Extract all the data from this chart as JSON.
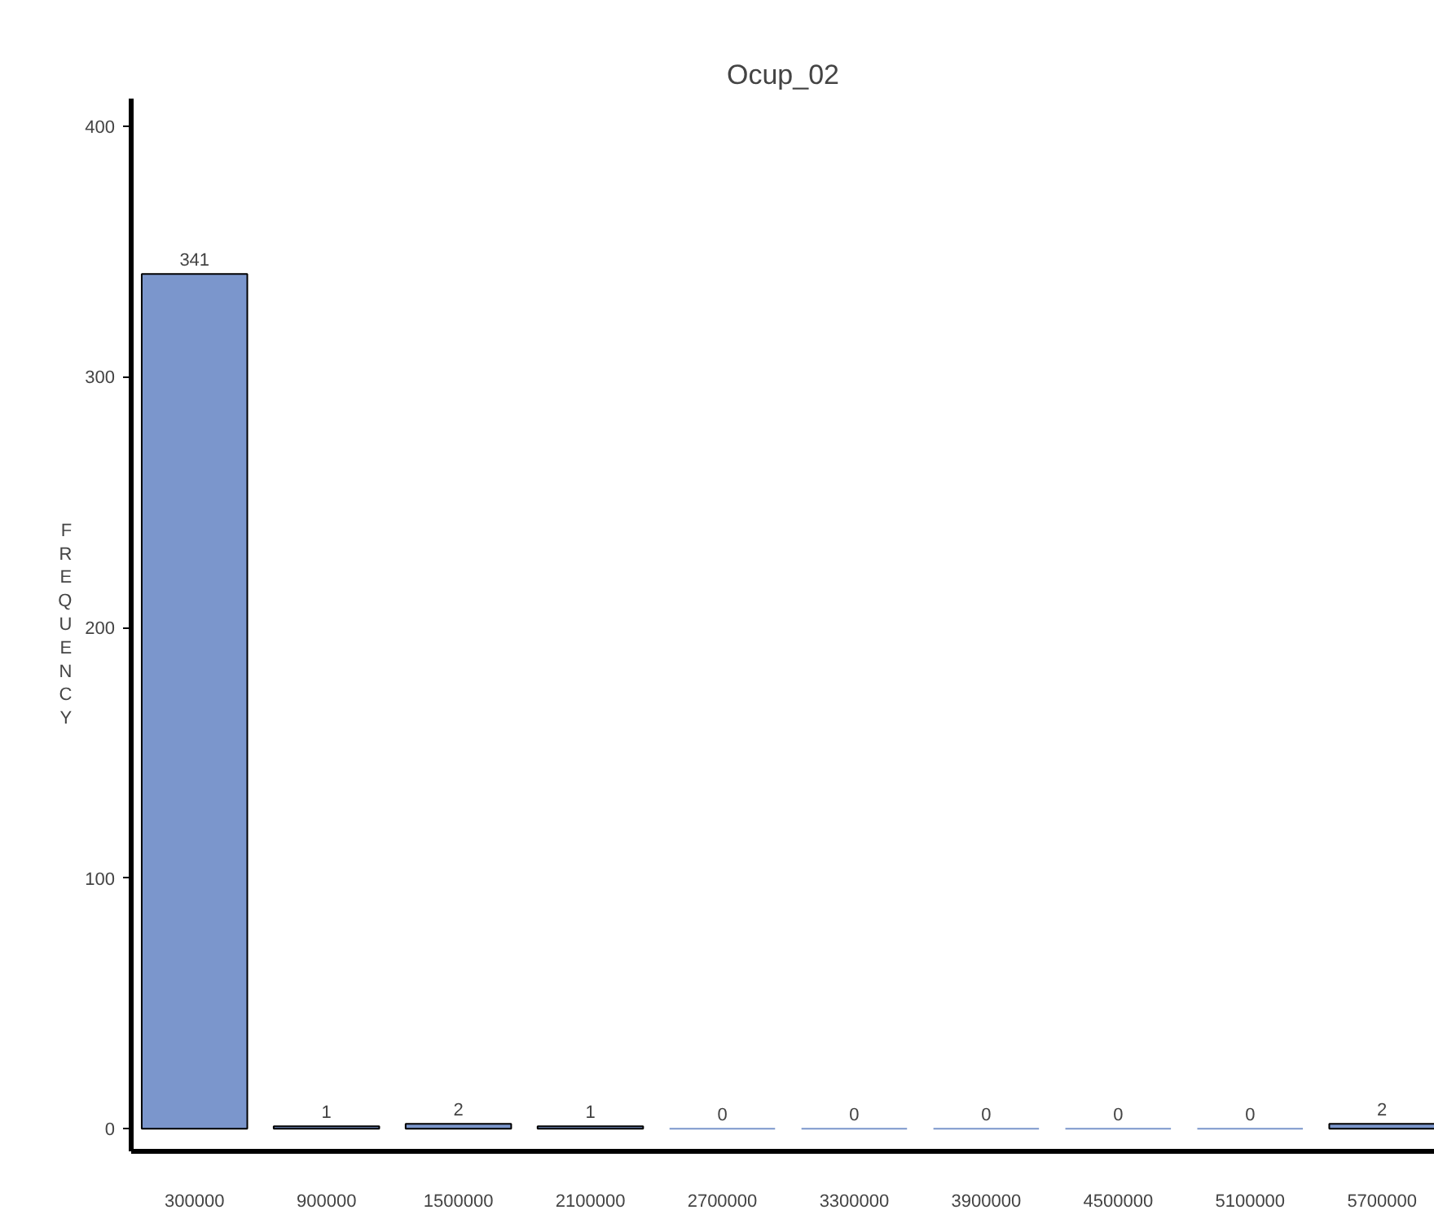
{
  "chart_data": {
    "type": "bar",
    "title": "Ocup_02",
    "ylabel": "FREQUENCY",
    "categories": [
      "300000",
      "900000",
      "1500000",
      "2100000",
      "2700000",
      "3300000",
      "3900000",
      "4500000",
      "5100000",
      "5700000"
    ],
    "values": [
      341,
      1,
      2,
      1,
      0,
      0,
      0,
      0,
      0,
      2
    ],
    "color": "#7b96cc",
    "ylim": [
      -9,
      411
    ],
    "yticks": [
      0,
      100,
      200,
      300,
      400
    ],
    "data_labels": true,
    "grid": false
  }
}
